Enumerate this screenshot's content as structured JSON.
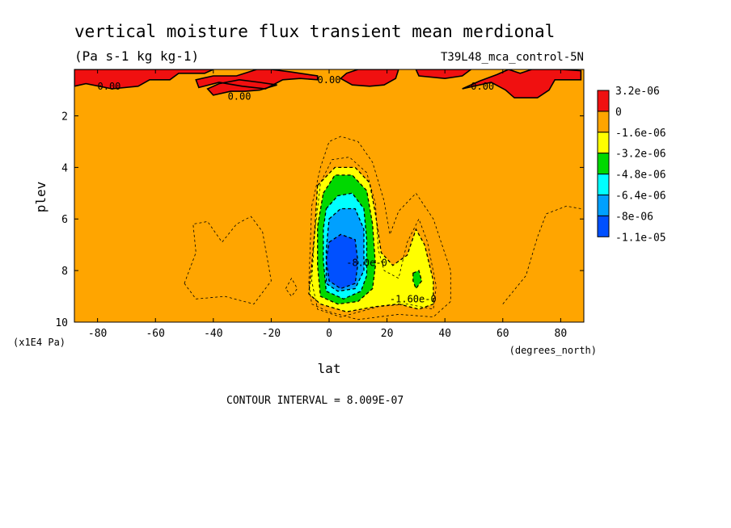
{
  "chart_data": {
    "type": "heatmap",
    "title": "vertical moisture flux transient mean merdional",
    "subtitle": "(Pa s-1 kg kg-1)",
    "dataset": "T39L48_mca_control-5N",
    "xlabel": "lat",
    "xunits": "(degrees_north)",
    "ylabel": "plev",
    "yunits": "(x1E4 Pa)",
    "xlim": [
      -88,
      88
    ],
    "ylim": [
      0.2,
      10
    ],
    "y_inverted": true,
    "x_ticks": [
      -80,
      -60,
      -40,
      -20,
      0,
      20,
      40,
      60,
      80
    ],
    "y_ticks": [
      2,
      4,
      6,
      8,
      10
    ],
    "colorbar": {
      "labels": [
        "3.2e-06",
        "0",
        "-1.6e-06",
        "-3.2e-06",
        "-4.8e-06",
        "-6.4e-06",
        "-8e-06",
        "-1.1e-05"
      ],
      "colors": [
        "#f01010",
        "#ffa500",
        "#ffff00",
        "#00d800",
        "#00ffff",
        "#00a0ff",
        "#0050ff"
      ]
    },
    "contour_labels": [
      {
        "text": "0.00",
        "lat": -76,
        "plev": 0.85
      },
      {
        "text": "0.00",
        "lat": -31,
        "plev": 1.25
      },
      {
        "text": "0.00",
        "lat": 0,
        "plev": 0.6
      },
      {
        "text": "0.00",
        "lat": 53,
        "plev": 0.85
      },
      {
        "text": "-1.60e-0",
        "lat": 29,
        "plev": 9.1
      },
      {
        "text": "-8.0e-0",
        "lat": 13,
        "plev": 7.7
      }
    ],
    "fields": [
      {
        "level": "-1.6e-06",
        "color": "#ffff00",
        "regions": [
          [
            [
              -4,
              4.7
            ],
            [
              2,
              4.0
            ],
            [
              9,
              4.0
            ],
            [
              14,
              4.6
            ],
            [
              16,
              5.8
            ],
            [
              18,
              7.3
            ],
            [
              22,
              7.8
            ],
            [
              27,
              7.4
            ],
            [
              30,
              6.4
            ],
            [
              33,
              7.0
            ],
            [
              36,
              8.4
            ],
            [
              36,
              9.3
            ],
            [
              31,
              9.5
            ],
            [
              24,
              9.3
            ],
            [
              16,
              9.4
            ],
            [
              6,
              9.6
            ],
            [
              -3,
              9.3
            ],
            [
              -7,
              8.9
            ],
            [
              -6,
              7.8
            ],
            [
              -5,
              6.5
            ]
          ]
        ]
      },
      {
        "level": "-3.2e-06",
        "color": "#00d800",
        "regions": [
          [
            [
              -2,
              5.0
            ],
            [
              2,
              4.3
            ],
            [
              8,
              4.3
            ],
            [
              13,
              4.9
            ],
            [
              15,
              6.2
            ],
            [
              16,
              7.8
            ],
            [
              15,
              8.7
            ],
            [
              10,
              9.2
            ],
            [
              3,
              9.3
            ],
            [
              -3,
              9.0
            ],
            [
              -4,
              7.8
            ],
            [
              -4,
              6.3
            ]
          ],
          [
            [
              29,
              8.1
            ],
            [
              31,
              8.0
            ],
            [
              32,
              8.4
            ],
            [
              30,
              8.7
            ],
            [
              29,
              8.4
            ]
          ]
        ]
      },
      {
        "level": "-4.8e-06",
        "color": "#00ffff",
        "regions": [
          [
            [
              -1,
              5.6
            ],
            [
              3,
              5.1
            ],
            [
              8,
              5.0
            ],
            [
              12,
              5.6
            ],
            [
              13,
              6.8
            ],
            [
              13,
              8.2
            ],
            [
              11,
              8.8
            ],
            [
              5,
              9.1
            ],
            [
              -1,
              8.8
            ],
            [
              -2,
              7.6
            ],
            [
              -2,
              6.4
            ]
          ]
        ]
      },
      {
        "level": "-6.4e-06",
        "color": "#00a0ff",
        "regions": [
          [
            [
              0,
              6.0
            ],
            [
              4,
              5.6
            ],
            [
              9,
              5.6
            ],
            [
              12,
              6.4
            ],
            [
              12,
              8.0
            ],
            [
              9,
              8.7
            ],
            [
              3,
              8.8
            ],
            [
              -1,
              8.5
            ],
            [
              -1,
              7.2
            ]
          ]
        ]
      },
      {
        "level": "-8e-06",
        "color": "#0050ff",
        "regions": [
          [
            [
              0,
              6.9
            ],
            [
              4,
              6.6
            ],
            [
              9,
              6.8
            ],
            [
              10,
              7.7
            ],
            [
              9,
              8.5
            ],
            [
              4,
              8.7
            ],
            [
              0,
              8.4
            ],
            [
              -1,
              7.6
            ]
          ]
        ]
      },
      {
        "level": "3.2e-06",
        "color": "#f01010",
        "regions": [
          [
            [
              -88,
              0.2
            ],
            [
              -88,
              0.85
            ],
            [
              -84,
              0.75
            ],
            [
              -75,
              0.95
            ],
            [
              -66,
              0.85
            ],
            [
              -62,
              0.6
            ],
            [
              -55,
              0.6
            ],
            [
              -52,
              0.35
            ],
            [
              -43,
              0.35
            ],
            [
              -40,
              0.2
            ]
          ],
          [
            [
              -45,
              0.9
            ],
            [
              -38,
              0.7
            ],
            [
              -30,
              0.85
            ],
            [
              -22,
              0.95
            ],
            [
              -16,
              0.6
            ],
            [
              -10,
              0.55
            ],
            [
              -4,
              0.6
            ],
            [
              -4,
              0.45
            ],
            [
              -13,
              0.3
            ],
            [
              -20,
              0.2
            ],
            [
              -25,
              0.2
            ],
            [
              -32,
              0.45
            ],
            [
              -40,
              0.45
            ],
            [
              -46,
              0.6
            ]
          ],
          [
            [
              -40,
              1.2
            ],
            [
              -34,
              1.05
            ],
            [
              -29,
              1.05
            ],
            [
              -24,
              1.0
            ],
            [
              -18,
              0.8
            ],
            [
              -24,
              0.7
            ],
            [
              -31,
              0.6
            ],
            [
              -38,
              0.75
            ],
            [
              -42,
              0.95
            ]
          ],
          [
            [
              6,
              0.35
            ],
            [
              10,
              0.2
            ],
            [
              24,
              0.2
            ],
            [
              23,
              0.55
            ],
            [
              19,
              0.8
            ],
            [
              14,
              0.85
            ],
            [
              8,
              0.8
            ],
            [
              4,
              0.55
            ]
          ],
          [
            [
              30,
              0.2
            ],
            [
              31,
              0.45
            ],
            [
              40,
              0.55
            ],
            [
              46,
              0.45
            ],
            [
              49,
              0.2
            ]
          ],
          [
            [
              46,
              0.95
            ],
            [
              52,
              0.65
            ],
            [
              58,
              0.4
            ],
            [
              62,
              0.2
            ],
            [
              66,
              0.35
            ],
            [
              70,
              0.2
            ],
            [
              80,
              0.2
            ],
            [
              87,
              0.25
            ],
            [
              87,
              0.6
            ],
            [
              78,
              0.6
            ],
            [
              76,
              1.0
            ],
            [
              72,
              1.3
            ],
            [
              64,
              1.3
            ],
            [
              61,
              1.0
            ],
            [
              56,
              0.7
            ]
          ]
        ]
      }
    ],
    "dashed_contours": [
      [
        [
          -50,
          8.5
        ],
        [
          -46,
          7.3
        ],
        [
          -47,
          6.2
        ],
        [
          -42,
          6.1
        ],
        [
          -37,
          6.9
        ],
        [
          -32,
          6.2
        ],
        [
          -27,
          5.9
        ],
        [
          -23,
          6.5
        ],
        [
          -20,
          8.4
        ],
        [
          -26,
          9.3
        ],
        [
          -36,
          9.0
        ],
        [
          -46,
          9.1
        ],
        [
          -50,
          8.5
        ]
      ],
      [
        [
          -7,
          8.5
        ],
        [
          -6,
          5.5
        ],
        [
          -3,
          4.0
        ],
        [
          0,
          3.0
        ],
        [
          4,
          2.8
        ],
        [
          10,
          3.0
        ],
        [
          15,
          3.8
        ],
        [
          19,
          5.3
        ],
        [
          21,
          6.6
        ],
        [
          24,
          5.7
        ],
        [
          30,
          5.0
        ],
        [
          36,
          6.0
        ],
        [
          42,
          8.0
        ],
        [
          42,
          9.2
        ],
        [
          36,
          9.8
        ],
        [
          24,
          9.7
        ],
        [
          10,
          9.9
        ],
        [
          0,
          9.6
        ],
        [
          -6,
          9.3
        ],
        [
          -7,
          8.5
        ]
      ],
      [
        [
          -15,
          8.7
        ],
        [
          -13,
          8.3
        ],
        [
          -11,
          8.7
        ],
        [
          -13,
          9.0
        ],
        [
          -15,
          8.7
        ]
      ],
      [
        [
          60,
          9.3
        ],
        [
          68,
          8.2
        ],
        [
          72,
          6.7
        ],
        [
          75,
          5.8
        ],
        [
          82,
          5.5
        ],
        [
          87,
          5.6
        ]
      ],
      [
        [
          -5,
          6.6
        ],
        [
          -3,
          4.6
        ],
        [
          1,
          3.7
        ],
        [
          7,
          3.6
        ],
        [
          13,
          4.2
        ],
        [
          16,
          5.4
        ],
        [
          17,
          7.2
        ],
        [
          19,
          8.0
        ],
        [
          24,
          8.3
        ],
        [
          27,
          6.9
        ],
        [
          31,
          6.0
        ],
        [
          34,
          6.9
        ],
        [
          37,
          8.6
        ],
        [
          36,
          9.5
        ],
        [
          27,
          9.3
        ],
        [
          17,
          9.4
        ],
        [
          4,
          9.8
        ],
        [
          -4,
          9.5
        ],
        [
          -6,
          8.4
        ],
        [
          -5,
          6.6
        ]
      ]
    ],
    "footer": "CONTOUR INTERVAL = 8.009E-07"
  }
}
